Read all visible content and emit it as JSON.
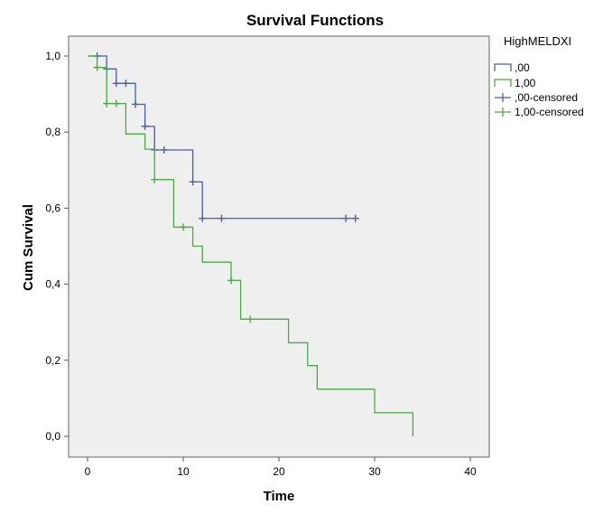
{
  "chart_data": {
    "type": "line",
    "subtype": "kaplan-meier-step",
    "title": "Survival Functions",
    "xlabel": "Time",
    "ylabel": "Cum Survival",
    "xlim": [
      0,
      40
    ],
    "ylim": [
      0,
      1.0
    ],
    "x_ticks": [
      0,
      10,
      20,
      30,
      40
    ],
    "x_tick_labels": [
      "0",
      "10",
      "20",
      "30",
      "40"
    ],
    "y_ticks": [
      0.0,
      0.2,
      0.4,
      0.6,
      0.8,
      1.0
    ],
    "y_tick_labels": [
      "0,0",
      "0,2",
      "0,4",
      "0,6",
      "0,8",
      "1,0"
    ],
    "grid": false,
    "legend": {
      "title": "HighMELDXI",
      "placement": "right",
      "entries": [
        ",00",
        "1,00",
        ",00-censored",
        "1,00-censored"
      ]
    },
    "series": [
      {
        "name": ",00",
        "color": "#4b5fa5",
        "steps": [
          [
            0,
            1.0
          ],
          [
            2,
            0.966
          ],
          [
            3,
            0.928
          ],
          [
            5,
            0.873
          ],
          [
            6,
            0.815
          ],
          [
            7,
            0.753
          ],
          [
            11,
            0.669
          ],
          [
            12,
            0.573
          ],
          [
            28,
            0.573
          ]
        ],
        "censored": [
          [
            1,
            1.0
          ],
          [
            2,
            0.966
          ],
          [
            3,
            0.928
          ],
          [
            4,
            0.928
          ],
          [
            5,
            0.873
          ],
          [
            6,
            0.815
          ],
          [
            7,
            0.753
          ],
          [
            8,
            0.753
          ],
          [
            11,
            0.669
          ],
          [
            12,
            0.573
          ],
          [
            14,
            0.573
          ],
          [
            27,
            0.573
          ],
          [
            28,
            0.573
          ]
        ]
      },
      {
        "name": "1,00",
        "color": "#4aab45",
        "steps": [
          [
            0,
            1.0
          ],
          [
            1,
            0.97
          ],
          [
            2,
            0.875
          ],
          [
            4,
            0.795
          ],
          [
            6,
            0.755
          ],
          [
            7,
            0.675
          ],
          [
            9,
            0.55
          ],
          [
            11,
            0.5
          ],
          [
            12,
            0.458
          ],
          [
            15,
            0.41
          ],
          [
            16,
            0.308
          ],
          [
            21,
            0.246
          ],
          [
            23,
            0.186
          ],
          [
            24,
            0.124
          ],
          [
            30,
            0.062
          ],
          [
            34,
            0.0
          ]
        ],
        "censored": [
          [
            1,
            0.97
          ],
          [
            2,
            0.875
          ],
          [
            3,
            0.875
          ],
          [
            7,
            0.675
          ],
          [
            10,
            0.55
          ],
          [
            15,
            0.41
          ],
          [
            17,
            0.308
          ]
        ]
      }
    ],
    "colors": {
      "plot_background": "#efefef",
      "frame": "#666666"
    }
  }
}
